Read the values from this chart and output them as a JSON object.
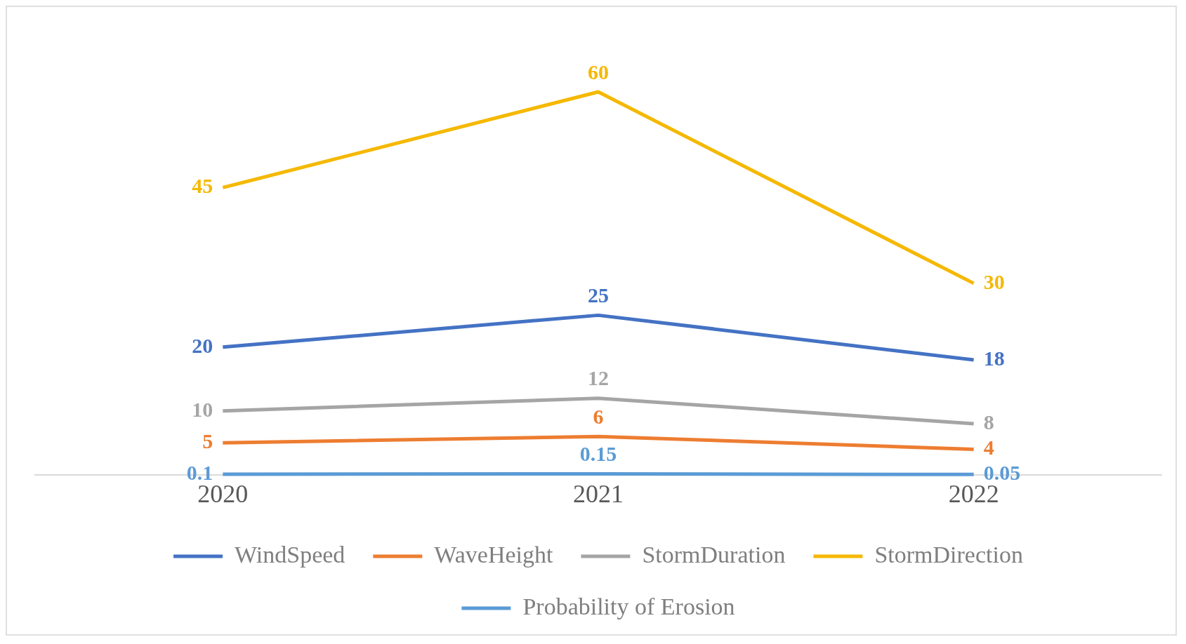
{
  "chart_data": {
    "type": "line",
    "categories": [
      "2020",
      "2021",
      "2022"
    ],
    "series": [
      {
        "name": "WindSpeed",
        "color": "#4472c4",
        "values": [
          20,
          25,
          18
        ]
      },
      {
        "name": "WaveHeight",
        "color": "#ed7d31",
        "values": [
          5,
          6,
          4
        ]
      },
      {
        "name": "StormDuration",
        "color": "#a5a5a5",
        "values": [
          10,
          12,
          8
        ]
      },
      {
        "name": "StormDirection",
        "color": "#f5b800",
        "values": [
          45,
          60,
          30
        ]
      },
      {
        "name": "Probability of Erosion",
        "color": "#5b9bd5",
        "values": [
          0.1,
          0.15,
          0.05
        ]
      }
    ],
    "tick_labels": "x",
    "marker": "none",
    "data_labels": true,
    "legend": "bottom",
    "line_style": "solid"
  }
}
